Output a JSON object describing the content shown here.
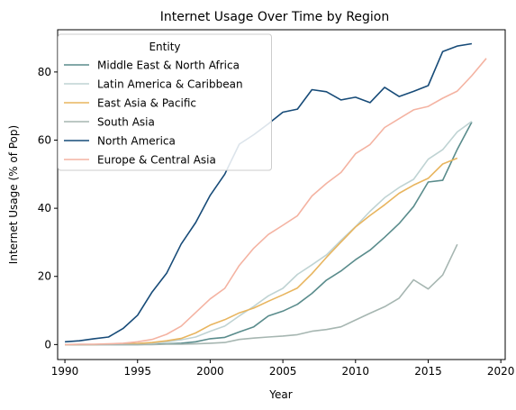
{
  "chart_data": {
    "type": "line",
    "title": "Internet Usage Over Time by Region",
    "xlabel": "Year",
    "ylabel": "Internet Usage (% of Pop)",
    "xlim": [
      1989.5,
      2020.3
    ],
    "ylim": [
      -4.4,
      92.4
    ],
    "xticks": [
      1990,
      1995,
      2000,
      2005,
      2010,
      2015,
      2020
    ],
    "yticks": [
      0,
      20,
      40,
      60,
      80
    ],
    "grid": false,
    "legend": {
      "title": "Entity",
      "placement": "top-left"
    },
    "series": [
      {
        "name": "Middle East & North Africa",
        "color": "#5a8c8c",
        "x": [
          1990,
          1991,
          1992,
          1993,
          1994,
          1995,
          1996,
          1997,
          1998,
          1999,
          2000,
          2001,
          2002,
          2003,
          2004,
          2005,
          2006,
          2007,
          2008,
          2009,
          2010,
          2011,
          2012,
          2013,
          2014,
          2015,
          2016,
          2017,
          2018
        ],
        "y": [
          0,
          0,
          0,
          0,
          0,
          0,
          0.1,
          0.2,
          0.4,
          0.8,
          1.7,
          2.1,
          3.7,
          5.2,
          8.4,
          9.8,
          11.8,
          15.0,
          18.9,
          21.6,
          24.9,
          27.7,
          31.5,
          35.5,
          40.5,
          47.7,
          48.2,
          57.3,
          65.3
        ]
      },
      {
        "name": "Latin America & Caribbean",
        "color": "#bfd3d3",
        "x": [
          1990,
          1991,
          1992,
          1993,
          1994,
          1995,
          1996,
          1997,
          1998,
          1999,
          2000,
          2001,
          2002,
          2003,
          2004,
          2005,
          2006,
          2007,
          2008,
          2009,
          2010,
          2011,
          2012,
          2013,
          2014,
          2015,
          2016,
          2017,
          2018
        ],
        "y": [
          0,
          0,
          0,
          0,
          0.1,
          0.2,
          0.4,
          0.8,
          1.4,
          2.2,
          3.9,
          5.4,
          8.4,
          11.2,
          14.3,
          16.5,
          20.6,
          23.4,
          26.3,
          30.6,
          34.6,
          39.1,
          43.1,
          46.1,
          48.5,
          54.4,
          57.2,
          62.4,
          65.5
        ]
      },
      {
        "name": "East Asia & Pacific",
        "color": "#e8b55f",
        "x": [
          1990,
          1991,
          1992,
          1993,
          1994,
          1995,
          1996,
          1997,
          1998,
          1999,
          2000,
          2001,
          2002,
          2003,
          2004,
          2005,
          2006,
          2007,
          2008,
          2009,
          2010,
          2011,
          2012,
          2013,
          2014,
          2015,
          2016,
          2017
        ],
        "y": [
          0,
          0,
          0,
          0.1,
          0.2,
          0.3,
          0.6,
          1.1,
          1.8,
          3.4,
          5.7,
          7.3,
          9.3,
          10.7,
          12.7,
          14.6,
          16.6,
          20.8,
          25.6,
          30.1,
          34.5,
          37.9,
          41.0,
          44.4,
          46.8,
          48.8,
          53.0,
          54.7
        ]
      },
      {
        "name": "South Asia",
        "color": "#a6b6b1",
        "x": [
          1990,
          1991,
          1992,
          1993,
          1994,
          1995,
          1996,
          1997,
          1998,
          1999,
          2000,
          2001,
          2002,
          2003,
          2004,
          2005,
          2006,
          2007,
          2008,
          2009,
          2010,
          2011,
          2012,
          2013,
          2014,
          2015,
          2016,
          2017
        ],
        "y": [
          0,
          0,
          0,
          0,
          0,
          0,
          0,
          0.1,
          0.1,
          0.2,
          0.4,
          0.6,
          1.5,
          1.9,
          2.2,
          2.5,
          2.9,
          3.9,
          4.4,
          5.2,
          7.2,
          9.2,
          11.1,
          13.6,
          19.0,
          16.3,
          20.4,
          29.4
        ]
      },
      {
        "name": "North America",
        "color": "#174b78",
        "x": [
          1990,
          1991,
          1992,
          1993,
          1994,
          1995,
          1996,
          1997,
          1998,
          1999,
          2000,
          2001,
          2002,
          2003,
          2004,
          2005,
          2006,
          2007,
          2008,
          2009,
          2010,
          2011,
          2012,
          2013,
          2014,
          2015,
          2016,
          2017,
          2018
        ],
        "y": [
          0.8,
          1.1,
          1.7,
          2.2,
          4.7,
          8.6,
          15.4,
          20.9,
          29.5,
          35.8,
          43.8,
          50.0,
          58.8,
          61.6,
          64.8,
          68.2,
          69.1,
          74.8,
          74.2,
          71.8,
          72.6,
          71.0,
          75.5,
          72.8,
          74.3,
          76.0,
          86.0,
          87.6,
          88.3
        ]
      },
      {
        "name": "Europe & Central Asia",
        "color": "#f4b3a2",
        "x": [
          1990,
          1991,
          1992,
          1993,
          1994,
          1995,
          1996,
          1997,
          1998,
          1999,
          2000,
          2001,
          2002,
          2003,
          2004,
          2005,
          2006,
          2007,
          2008,
          2009,
          2010,
          2011,
          2012,
          2013,
          2014,
          2015,
          2016,
          2017,
          2018,
          2019
        ],
        "y": [
          0,
          0.1,
          0.1,
          0.2,
          0.4,
          0.8,
          1.5,
          3.0,
          5.4,
          9.4,
          13.4,
          16.5,
          23.2,
          28.3,
          32.3,
          35.0,
          37.8,
          43.6,
          47.3,
          50.5,
          56.0,
          58.7,
          63.7,
          66.3,
          68.9,
          69.9,
          72.3,
          74.4,
          78.9,
          84.0
        ]
      }
    ]
  }
}
